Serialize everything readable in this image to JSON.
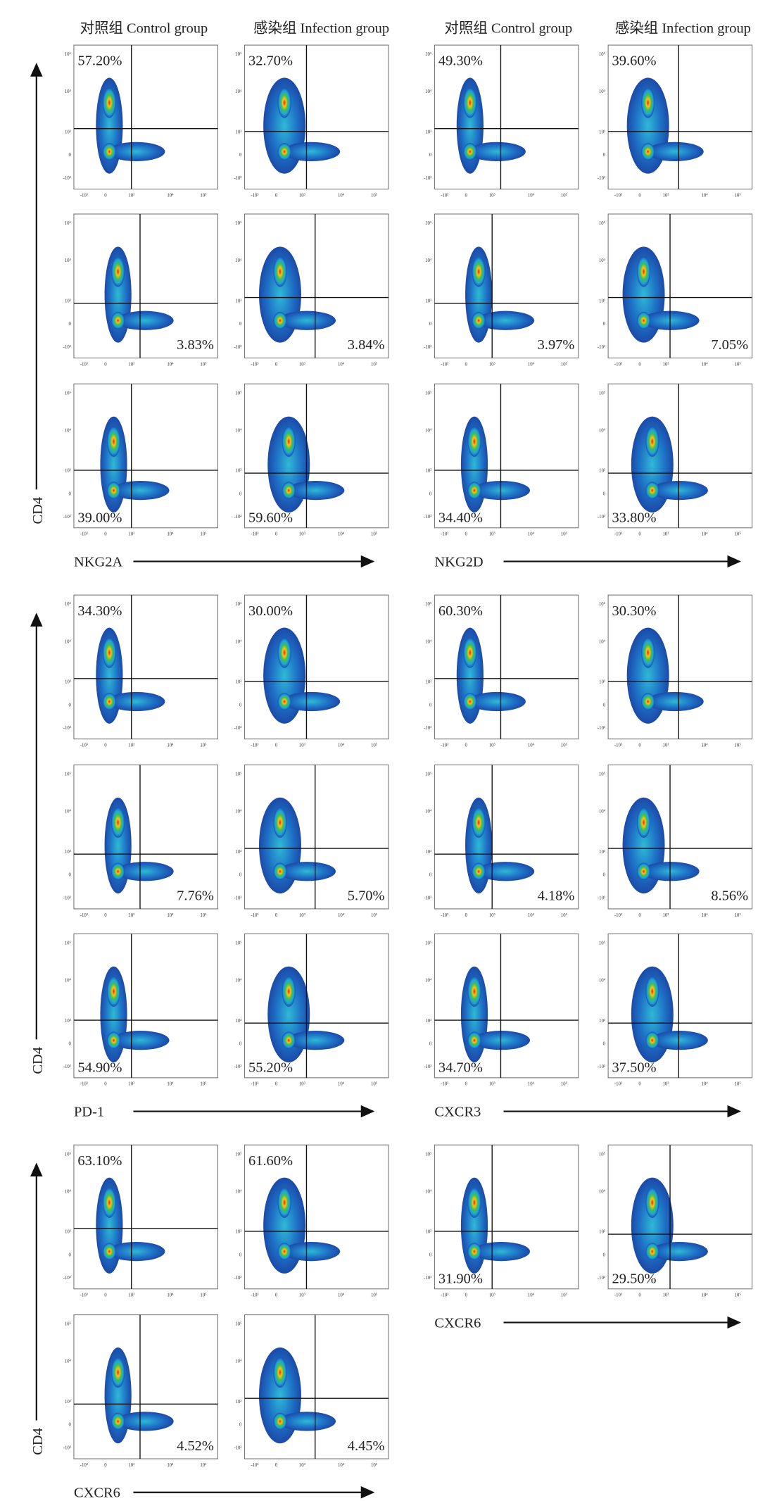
{
  "headers": [
    "对照组 Control group",
    "感染组 Infection group",
    "对照组 Control group",
    "感染组 Infection group"
  ],
  "axis_ticks": [
    "-10³",
    "0",
    "10³",
    "10⁴",
    "10⁵"
  ],
  "sections": [
    {
      "y_label": "CD4",
      "blocks": [
        {
          "x_label": "NKG2A",
          "rows": [
            [
              "57.20%",
              "32.70%"
            ],
            [
              "3.83%",
              "3.84%"
            ],
            [
              "39.00%",
              "59.60%"
            ]
          ]
        },
        {
          "x_label": "NKG2D",
          "rows": [
            [
              "49.30%",
              "39.60%"
            ],
            [
              "3.97%",
              "7.05%"
            ],
            [
              "34.40%",
              "33.80%"
            ]
          ]
        }
      ]
    },
    {
      "y_label": "CD4",
      "blocks": [
        {
          "x_label": "PD-1",
          "rows": [
            [
              "34.30%",
              "30.00%"
            ],
            [
              "7.76%",
              "5.70%"
            ],
            [
              "54.90%",
              "55.20%"
            ]
          ]
        },
        {
          "x_label": "CXCR3",
          "rows": [
            [
              "60.30%",
              "30.30%"
            ],
            [
              "4.18%",
              "8.56%"
            ],
            [
              "34.70%",
              "37.50%"
            ]
          ]
        }
      ]
    },
    {
      "y_label": "CD4",
      "blocks": [
        {
          "x_label": "CXCR6",
          "rows": [
            [
              "63.10%",
              "61.60%"
            ],
            [
              "4.52%",
              "4.45%"
            ]
          ]
        },
        {
          "x_label": "CXCR6",
          "rows": [
            [
              "31.90%",
              "29.50%"
            ]
          ]
        }
      ]
    }
  ]
}
